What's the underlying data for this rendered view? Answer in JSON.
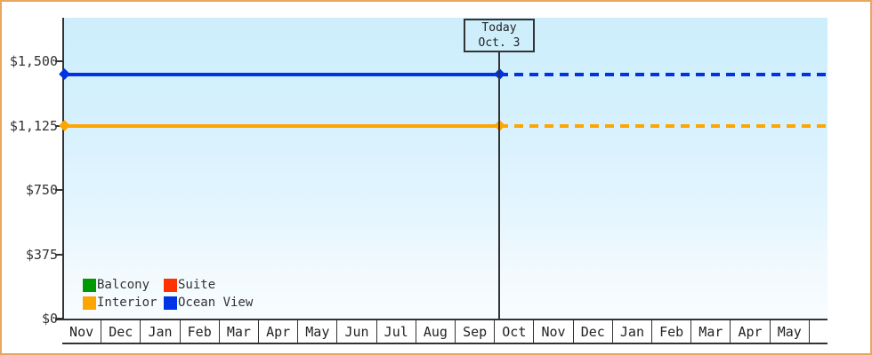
{
  "chart_data": {
    "type": "line",
    "title": "",
    "x_axis": {
      "months": [
        "Nov",
        "Dec",
        "Jan",
        "Feb",
        "Mar",
        "Apr",
        "May",
        "Jun",
        "Jul",
        "Aug",
        "Sep",
        "Oct",
        "Nov",
        "Dec",
        "Jan",
        "Feb",
        "Mar",
        "Apr",
        "May"
      ],
      "trailing_empty_cell": true
    },
    "y_axis": {
      "ticks": [
        {
          "label": "$1,500",
          "value": 1500
        },
        {
          "label": "$1,125",
          "value": 1125
        },
        {
          "label": "$750",
          "value": 750
        },
        {
          "label": "$375",
          "value": 375
        },
        {
          "label": "$0",
          "value": 0
        }
      ],
      "range": [
        0,
        1760
      ],
      "grid": false
    },
    "today_marker": {
      "line1": "Today",
      "line2": "Oct. 3",
      "month_index": 11,
      "day": 3
    },
    "series": [
      {
        "name": "Balcony",
        "color": "#009900",
        "plotted": false,
        "price_usd": null
      },
      {
        "name": "Suite",
        "color": "#ff3300",
        "plotted": false,
        "price_usd": null
      },
      {
        "name": "Interior",
        "color": "#ffa500",
        "plotted": true,
        "price_usd": 1125,
        "past_style": "solid",
        "forecast_style": "dashed"
      },
      {
        "name": "Ocean View",
        "color": "#0033e6",
        "plotted": true,
        "price_usd": 1425,
        "past_style": "solid",
        "forecast_style": "dashed"
      }
    ],
    "legend_position": "bottom-left"
  },
  "colors": {
    "frame_border": "#e9a75e",
    "axis": "#333333",
    "plot_bg_top": "#cdeefc",
    "plot_bg_bottom": "#f8fcff",
    "today_line": "#333333"
  }
}
